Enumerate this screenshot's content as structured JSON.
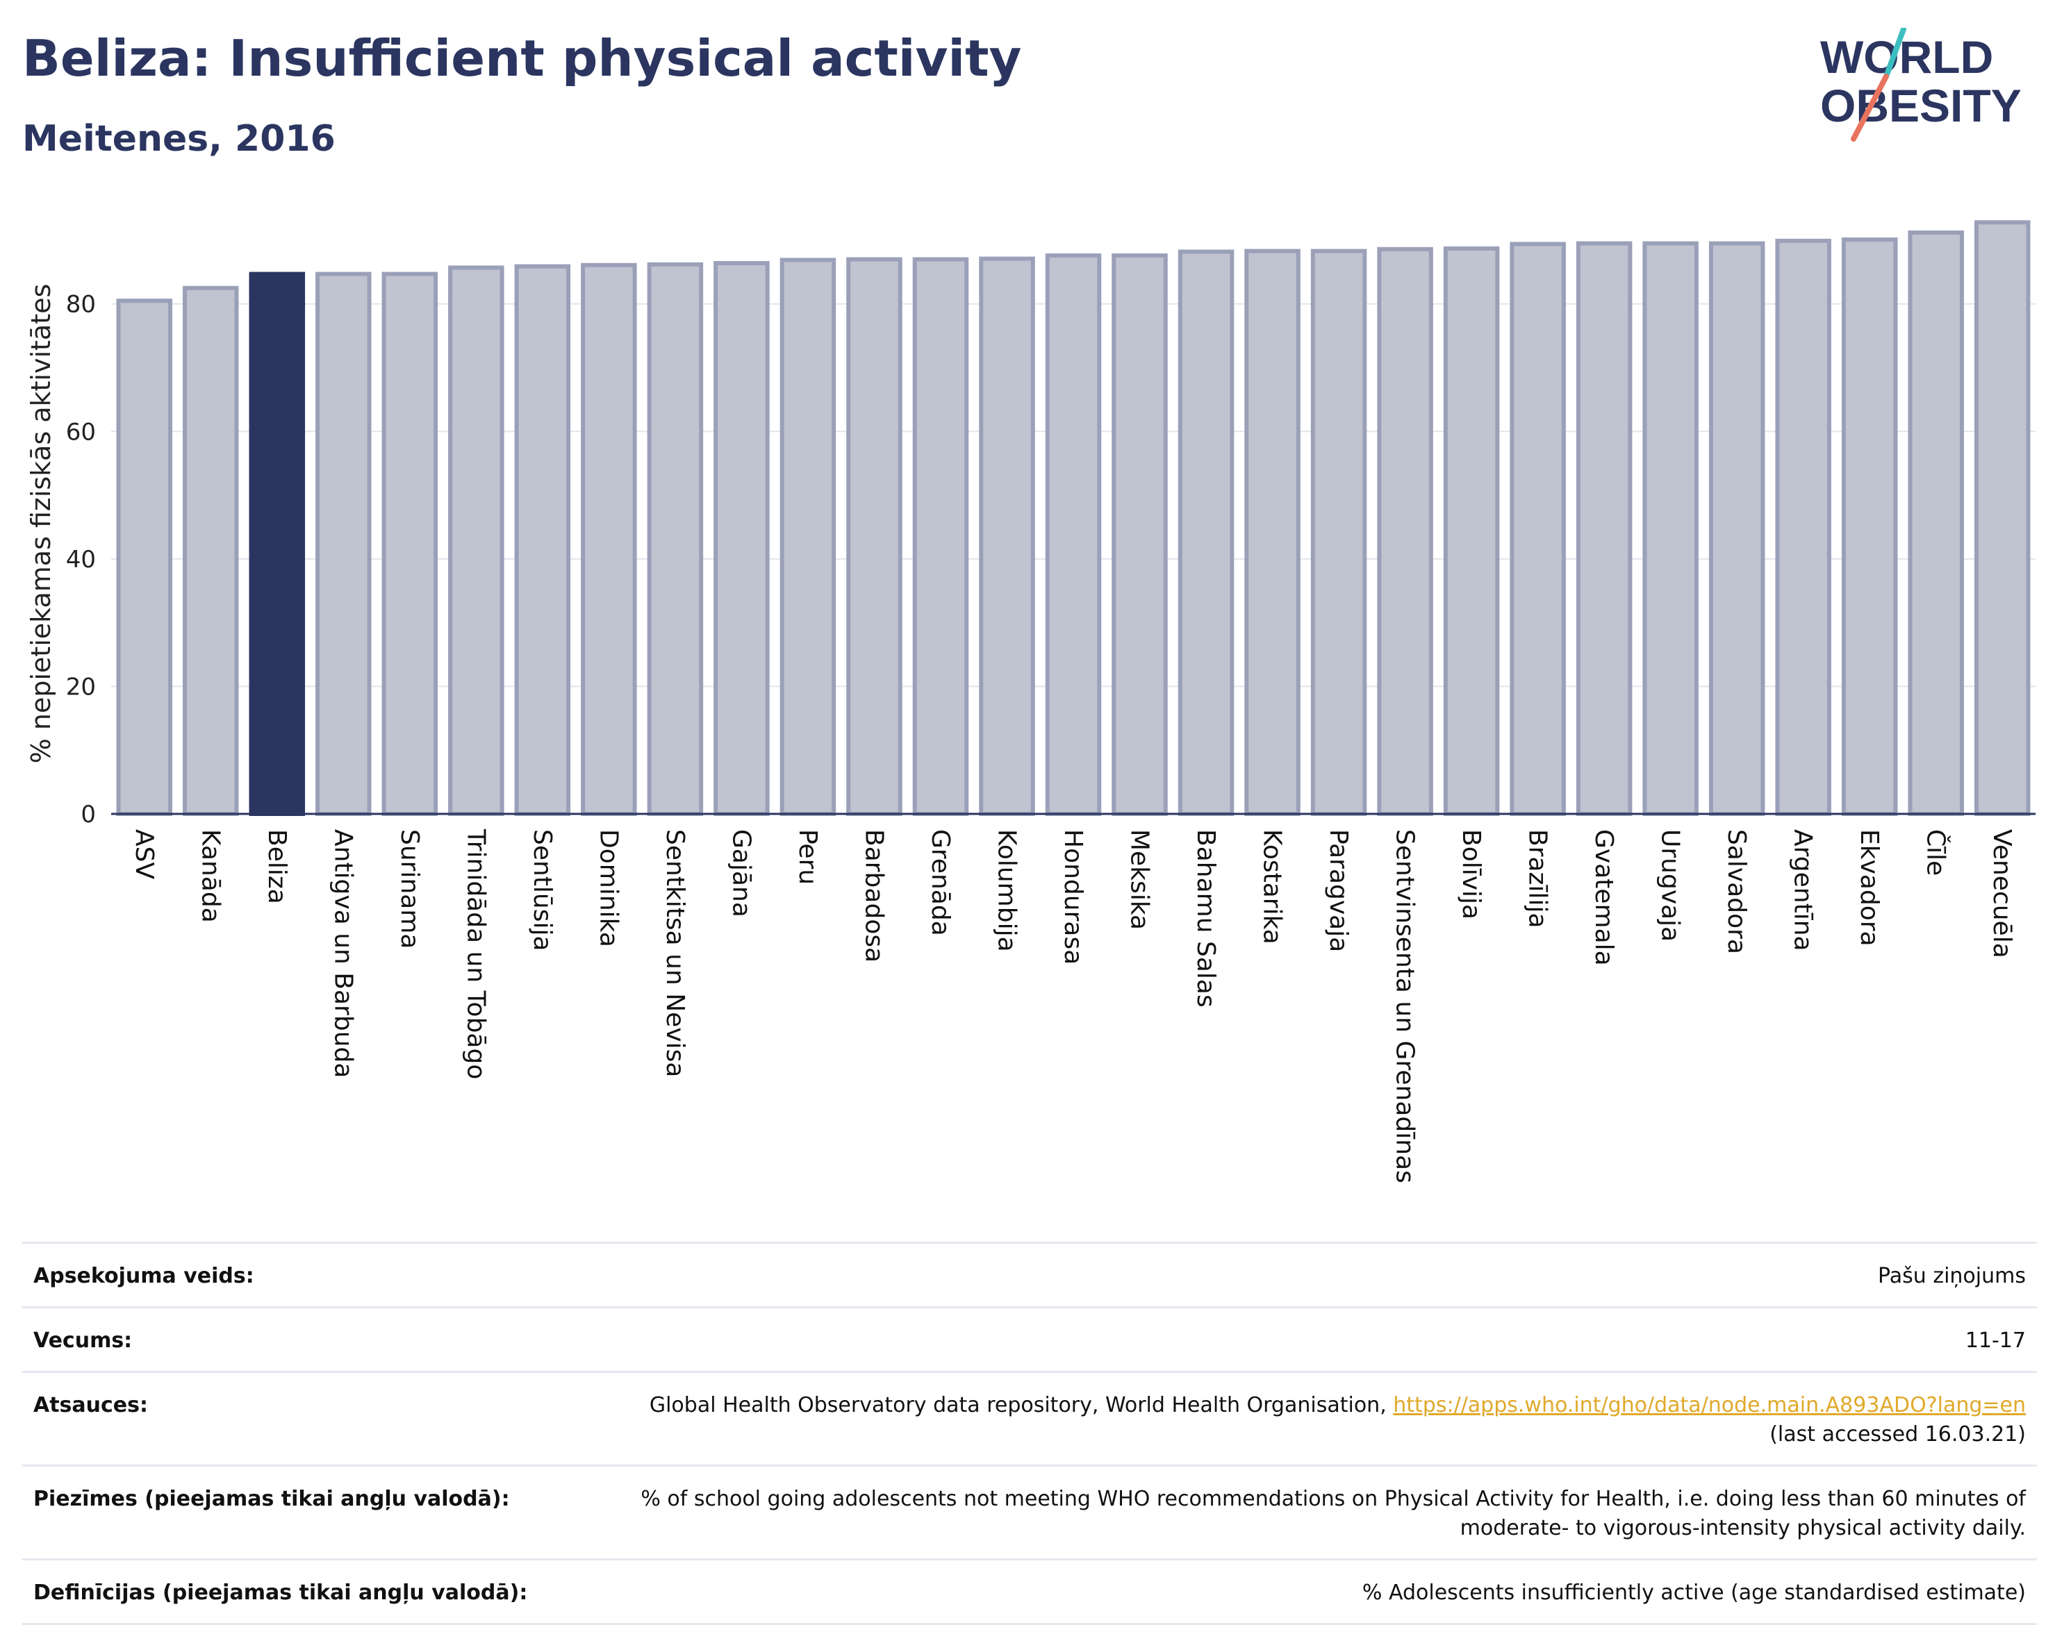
{
  "header": {
    "title": "Beliza: Insufficient physical activity",
    "subtitle": "Meitenes, 2016"
  },
  "logo": {
    "line1": "WORLD",
    "line2": "OBESITY"
  },
  "colors": {
    "text": "#2b3560",
    "bar": "#c0c3d0",
    "bar_stroke": "#9aa0b8",
    "bar_highlight": "#2b3560",
    "logo_teal": "#3cbfbf",
    "logo_coral": "#e8735e",
    "link": "#e0a92a"
  },
  "chart_data": {
    "type": "bar",
    "ylabel": "% nepietiekamas fiziskās aktivitātes",
    "ylim": [
      0,
      95
    ],
    "yticks": [
      0,
      20,
      40,
      60,
      80
    ],
    "grid": true,
    "highlight": "Beliza",
    "categories": [
      "ASV",
      "Kanāda",
      "Beliza",
      "Antigva un Barbuda",
      "Surinama",
      "Trinidāda un Tobāgo",
      "Sentlūsija",
      "Dominika",
      "Sentkitsa un Nevisa",
      "Gajāna",
      "Peru",
      "Barbadosa",
      "Grenāda",
      "Kolumbija",
      "Hondurasa",
      "Meksika",
      "Bahamu Salas",
      "Kostarika",
      "Paragvaja",
      "Sentvinsenta un Grenadīnas",
      "Bolīvija",
      "Brazīlija",
      "Gvatemala",
      "Urugvaja",
      "Salvadora",
      "Argentīna",
      "Ekvadora",
      "Čīle",
      "Venecuēla"
    ],
    "values": [
      80.5,
      82.5,
      84.7,
      84.7,
      84.7,
      85.7,
      85.9,
      86.1,
      86.2,
      86.4,
      86.9,
      87.0,
      87.0,
      87.1,
      87.6,
      87.6,
      88.2,
      88.3,
      88.3,
      88.6,
      88.7,
      89.4,
      89.5,
      89.5,
      89.5,
      89.9,
      90.1,
      91.2,
      92.8
    ]
  },
  "info": [
    {
      "label": "Apsekojuma veids:",
      "value": "Pašu ziņojums"
    },
    {
      "label": "Vecums:",
      "value": "11-17"
    },
    {
      "label": "Atsauces:",
      "value": "Global Health Observatory data repository, World Health Organisation, ",
      "link": "https://apps.who.int/gho/data/node.main.A893ADO?lang=en",
      "value2": "(last accessed 16.03.21)"
    },
    {
      "label": "Piezīmes (pieejamas tikai angļu valodā):",
      "value": "% of school going adolescents not meeting WHO recommendations on Physical Activity for Health, i.e. doing less than 60 minutes of moderate- to vigorous-intensity physical activity daily."
    },
    {
      "label": "Definīcijas (pieejamas tikai angļu valodā):",
      "value": "% Adolescents insufficiently active (age standardised estimate)"
    }
  ]
}
